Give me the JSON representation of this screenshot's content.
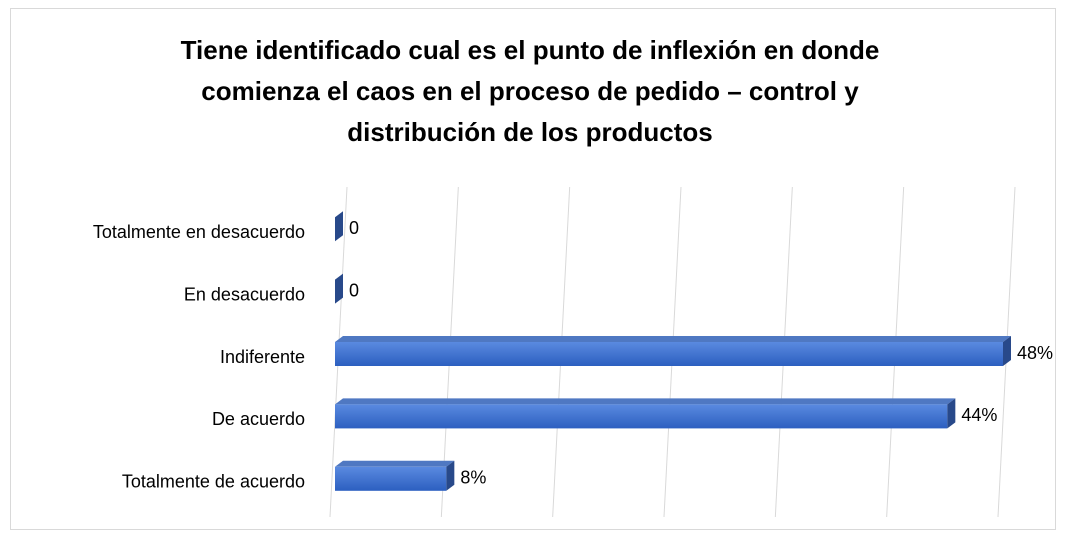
{
  "chart_data": {
    "type": "bar",
    "orientation": "horizontal",
    "title": "Tiene identificado cual es el punto de inflexión en donde comienza el caos en el proceso de pedido – control y distribución de los productos",
    "categories": [
      "Totalmente en desacuerdo",
      "En desacuerdo",
      "Indiferente",
      "De acuerdo",
      "Totalmente de acuerdo"
    ],
    "values": [
      0,
      0,
      48,
      44,
      8
    ],
    "value_labels": [
      "0",
      "0",
      "48%",
      "44%",
      "8%"
    ],
    "color": "#3a6cc9",
    "xlim": [
      0,
      48
    ],
    "xticks": [
      0,
      8,
      16,
      24,
      32,
      40,
      48
    ],
    "grid": true
  }
}
